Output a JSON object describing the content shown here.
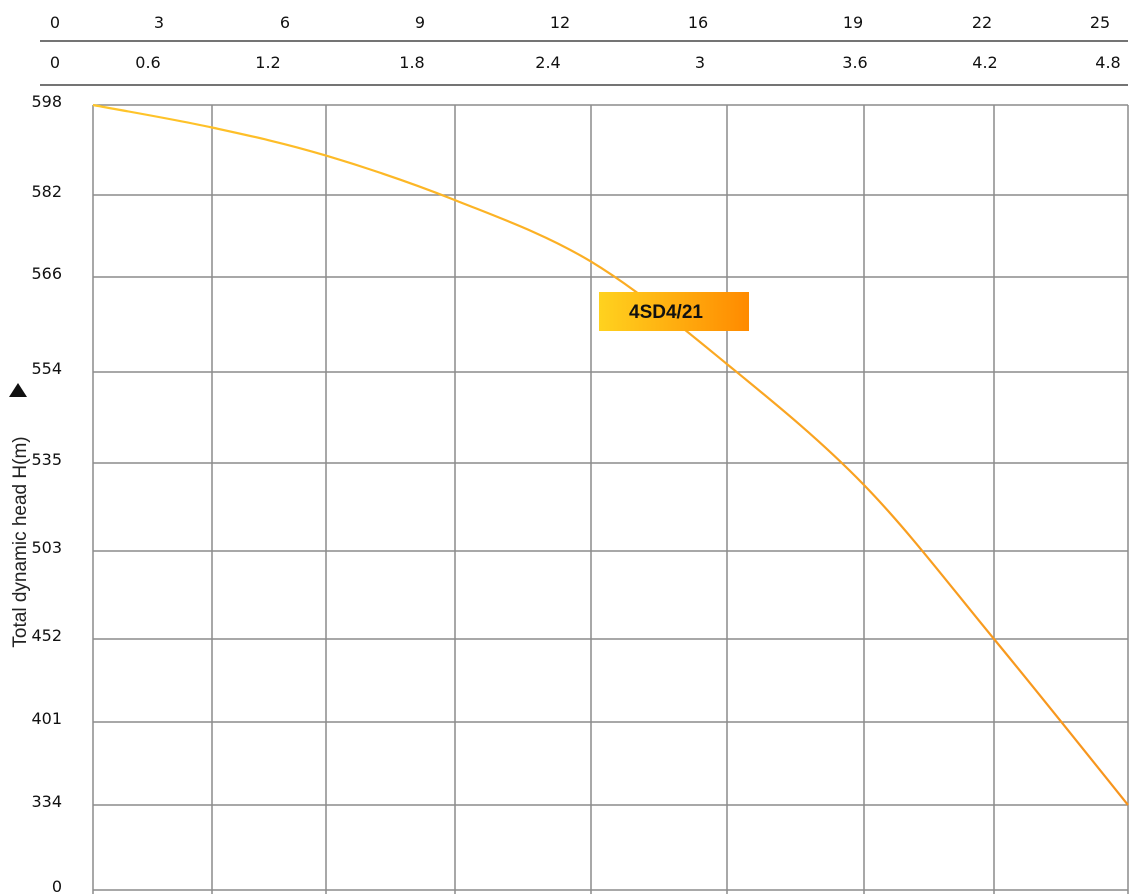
{
  "chart_data": {
    "type": "line",
    "ylabel": "Total dynamic head H(m)",
    "x_top_ticks": [
      "0",
      "3",
      "6",
      "9",
      "12",
      "16",
      "19",
      "22",
      "25"
    ],
    "x_bottom_ticks": [
      "0",
      "0.6",
      "1.2",
      "1.8",
      "2.4",
      "3",
      "3.6",
      "4.2",
      "4.8"
    ],
    "y_ticks": [
      "598",
      "582",
      "566",
      "554",
      "535",
      "503",
      "452",
      "401",
      "334",
      "0"
    ],
    "series": [
      {
        "name": "4SD4/21",
        "color": "#f7a21b",
        "x": [
          0,
          0.6,
          1.2,
          1.8,
          2.4,
          3,
          3.6,
          4.2,
          4.8
        ],
        "y": [
          598,
          594,
          589,
          581,
          569,
          555,
          527,
          452,
          334
        ]
      }
    ],
    "grid": true,
    "legend": "label on curve"
  },
  "colors": {
    "grid": "#8c8c8c",
    "curve_start": "#ffc62a",
    "curve_end": "#f7941d",
    "label_start": "#ffd21f",
    "label_end": "#ff8a00"
  }
}
